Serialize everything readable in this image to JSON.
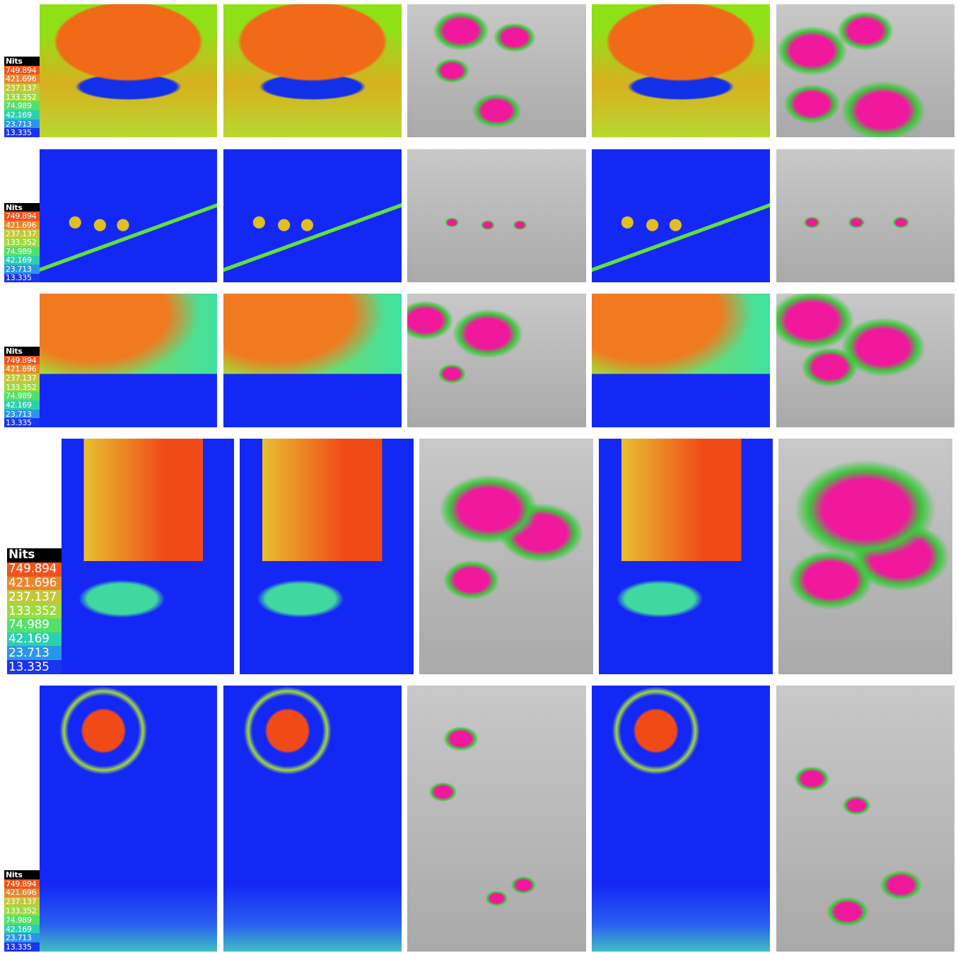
{
  "rows": [
    {
      "legend": {
        "title": "Nits",
        "values": [
          749.894,
          421.696,
          237.137,
          133.352,
          74.989,
          42.169,
          23.713,
          13.335
        ]
      }
    },
    {
      "legend": {
        "title": "Nits",
        "values": [
          749.894,
          421.696,
          237.137,
          133.352,
          74.989,
          42.169,
          23.713,
          13.335
        ]
      }
    },
    {
      "legend": {
        "title": "Nits",
        "values": [
          749.894,
          421.696,
          237.137,
          133.352,
          74.989,
          42.169,
          23.713,
          13.335
        ]
      }
    },
    {
      "legend": {
        "title": "Nits",
        "values": [
          749.894,
          421.696,
          237.137,
          133.352,
          74.989,
          42.169,
          23.713,
          13.335
        ]
      }
    },
    {
      "legend": {
        "title": "Nits",
        "values": [
          749.894,
          421.696,
          237.137,
          133.352,
          74.989,
          42.169,
          23.713,
          13.335
        ]
      }
    }
  ]
}
